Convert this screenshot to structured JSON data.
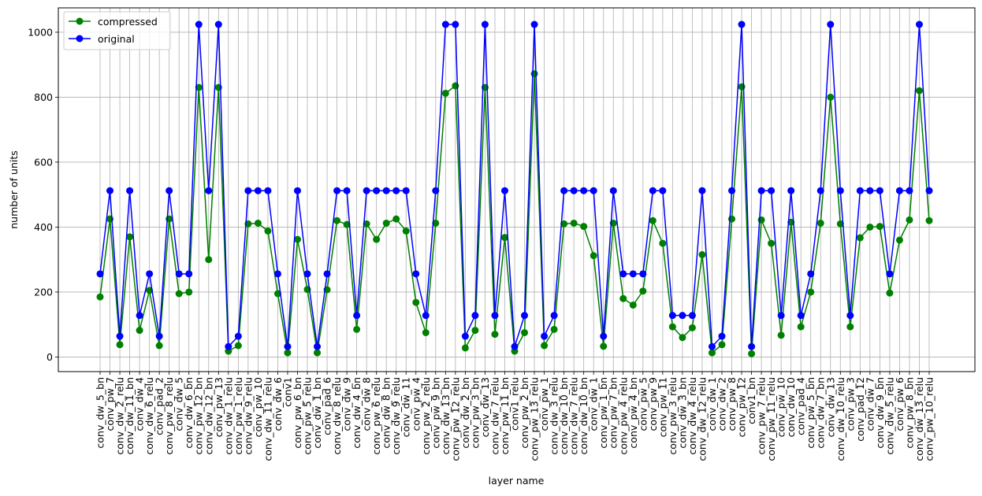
{
  "chart_data": {
    "type": "line",
    "title": "",
    "xlabel": "layer name",
    "ylabel": "number of units",
    "ylim": [
      -45,
      1075
    ],
    "yticks": [
      0,
      200,
      400,
      600,
      800,
      1000
    ],
    "grid": true,
    "legend_position": "top-left",
    "categories": [
      "conv_dw_5_bn",
      "conv_pw_7",
      "conv_dw_2_relu",
      "conv_dw_11_bn",
      "conv_dw_4",
      "conv_dw_6_relu",
      "conv_pad_2",
      "conv_pw_8_relu",
      "conv_dw_5",
      "conv_dw_6_bn",
      "conv_pw_12_bn",
      "conv_dw_12_bn",
      "conv_pw_13",
      "conv_dw_1_relu",
      "conv_pw_1_relu",
      "conv_dw_9_relu",
      "conv_pw_10",
      "conv_dw_11_relu",
      "conv_dw_6",
      "conv1",
      "conv_pw_6_bn",
      "conv_pw_5_relu",
      "conv_dw_1_bn",
      "conv_pad_6",
      "conv_dw_8_relu",
      "conv_dw_9",
      "conv_dw_4_bn",
      "conv_dw_8",
      "conv_pw_6_relu",
      "conv_dw_8_bn",
      "conv_dw_9_relu",
      "conv_dw_11",
      "conv_pw_4",
      "conv_pw_2_relu",
      "conv_pw_9_bn",
      "conv_dw_13_bn",
      "conv_pw_12_relu",
      "conv_dw_2_bn",
      "conv_pw_3_bn",
      "conv_dw_13",
      "conv_dw_7_relu",
      "conv_pw_11_bn",
      "conv1_relu",
      "conv_pw_2_bn",
      "conv_pw_13_relu",
      "conv_pw_1",
      "conv_dw_3_relu",
      "conv_dw_10_bn",
      "conv_dw_7_relu",
      "conv_dw_10_bn",
      "conv_dw_1",
      "conv_pw_1_bn",
      "conv_pw_7_bn",
      "conv_pw_4_relu",
      "conv_pw_4_bn",
      "conv_pw_5",
      "conv_pw_9",
      "conv_pw_11",
      "conv_pw_3_relu",
      "conv_dw_3_bn",
      "conv_dw_4_relu",
      "conv_dw_12_relu",
      "conv_dw_1",
      "conv_dw_2",
      "conv_pw_8",
      "conv_pw_12",
      "conv1_bn",
      "conv_pw_7_relu",
      "conv_pw_11_relu",
      "conv_pw_10",
      "conv_dw_10",
      "conv_pad_4",
      "conv_pw_5_bn",
      "conv_dw_7_bn",
      "conv_dw_13",
      "conv_dw_10_relu",
      "conv_pw_3",
      "conv_pad_12",
      "conv_dw_7",
      "conv_dw_9_bn",
      "conv_dw_5_relu",
      "conv_pw_6",
      "conv_pw_8_bn",
      "conv_dw_13_relu",
      "conv_pw_10_relu"
    ],
    "series": [
      {
        "name": "compressed",
        "color": "#008000",
        "values": [
          185,
          425,
          38,
          370,
          82,
          205,
          35,
          425,
          195,
          200,
          830,
          300,
          830,
          18,
          35,
          410,
          412,
          388,
          195,
          13,
          362,
          208,
          13,
          207,
          420,
          408,
          85,
          410,
          362,
          412,
          425,
          388,
          168,
          75,
          412,
          812,
          835,
          28,
          82,
          830,
          70,
          368,
          18,
          75,
          872,
          35,
          85,
          410,
          412,
          402,
          312,
          33,
          412,
          180,
          160,
          203,
          420,
          350,
          93,
          60,
          90,
          315,
          13,
          38,
          425,
          832,
          10,
          422,
          350,
          67,
          415,
          93,
          200,
          412,
          800,
          410,
          93,
          367,
          400,
          402,
          197,
          360,
          422,
          820,
          420
        ]
      },
      {
        "name": "original",
        "color": "#0000ff",
        "values": [
          256,
          512,
          64,
          512,
          128,
          256,
          64,
          512,
          256,
          256,
          1024,
          512,
          1024,
          32,
          64,
          512,
          512,
          512,
          256,
          32,
          512,
          256,
          32,
          256,
          512,
          512,
          128,
          512,
          512,
          512,
          512,
          512,
          256,
          128,
          512,
          1024,
          1024,
          64,
          128,
          1024,
          128,
          512,
          32,
          128,
          1024,
          64,
          128,
          512,
          512,
          512,
          512,
          64,
          512,
          256,
          256,
          256,
          512,
          512,
          128,
          128,
          128,
          512,
          32,
          64,
          512,
          1024,
          32,
          512,
          512,
          128,
          512,
          128,
          256,
          512,
          1024,
          512,
          128,
          512,
          512,
          512,
          256,
          512,
          512,
          1024,
          512
        ]
      }
    ]
  }
}
